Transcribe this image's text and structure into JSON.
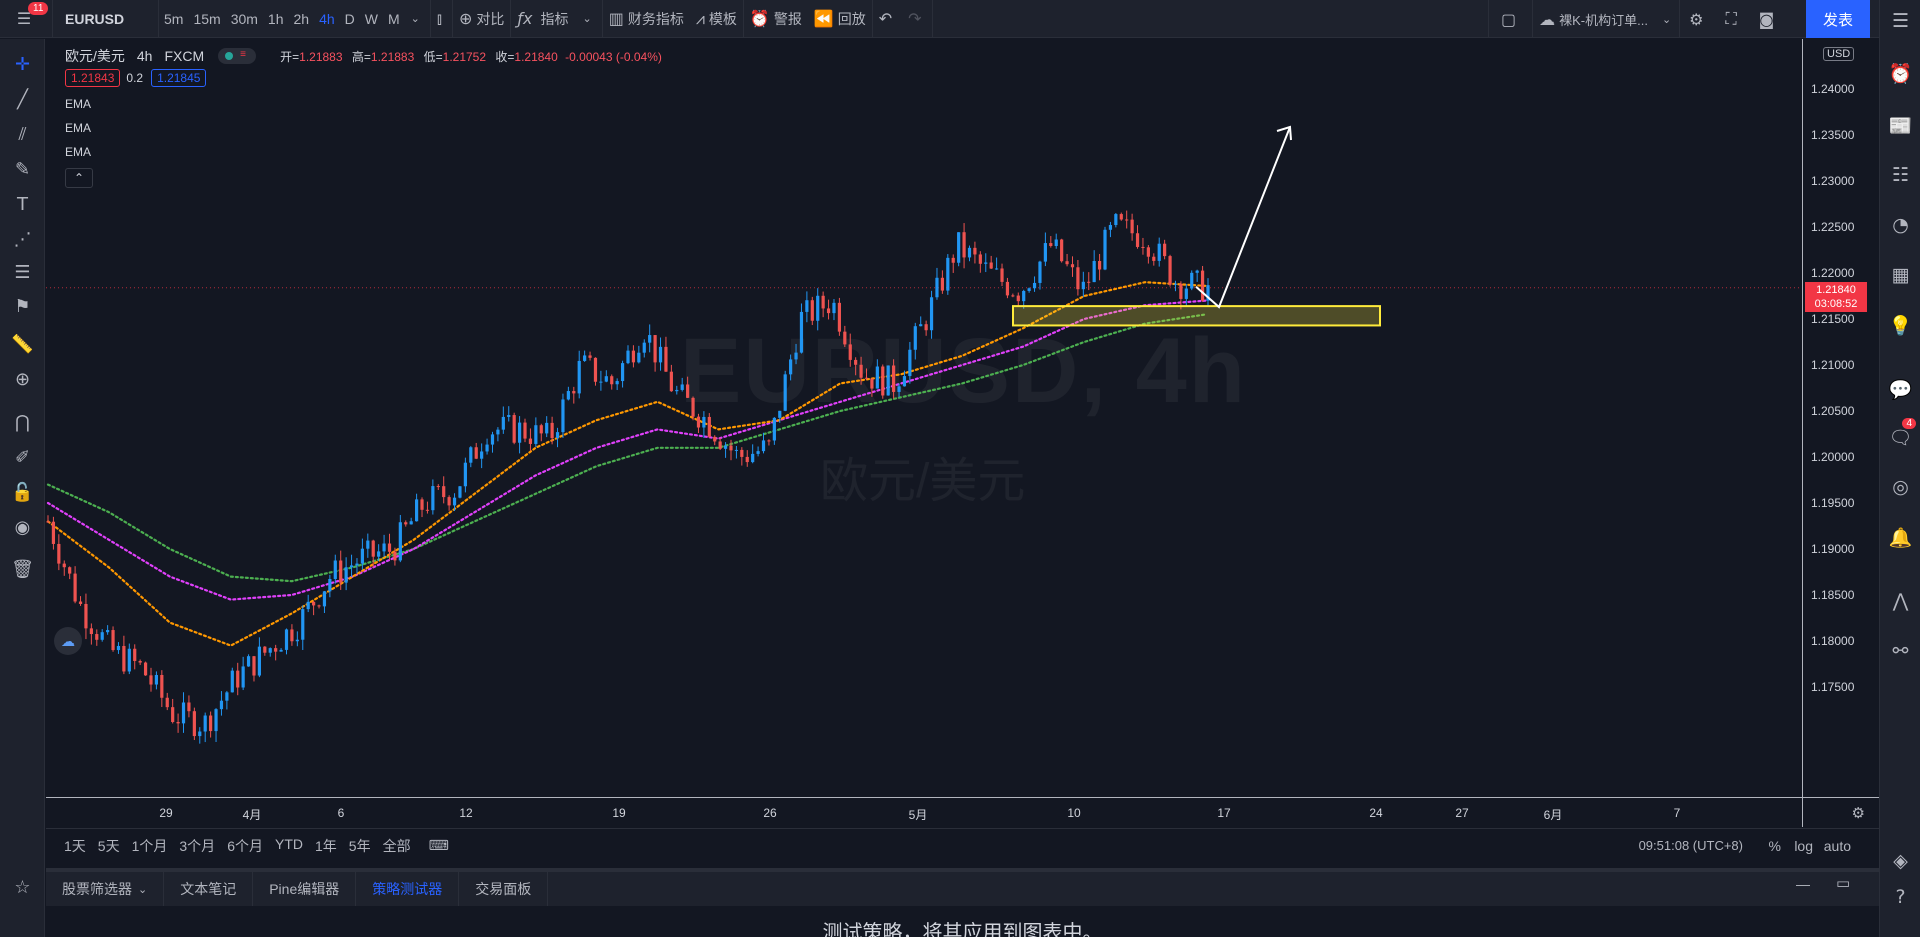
{
  "topbar": {
    "menu_badge": "11",
    "symbol": "EURUSD",
    "intervals": [
      "5m",
      "15m",
      "30m",
      "1h",
      "2h",
      "4h",
      "D",
      "W",
      "M"
    ],
    "active_interval": "4h",
    "compare": "对比",
    "indicators": "指标",
    "financials": "财务指标",
    "templates": "模板",
    "alert": "警报",
    "replay": "回放",
    "layout_name": "裸K-机构订单...",
    "publish": "发表"
  },
  "legend": {
    "title": "欧元/美元",
    "interval": "4h",
    "source": "FXCM",
    "open_label": "开=",
    "open": "1.21883",
    "high_label": "高=",
    "high": "1.21883",
    "low_label": "低=",
    "low": "1.21752",
    "close_label": "收=",
    "close": "1.21840",
    "change": "-0.00043 (-0.04%)",
    "sell": "1.21843",
    "spread": "0.2",
    "buy": "1.21845",
    "indicators": [
      "EMA",
      "EMA",
      "EMA"
    ]
  },
  "watermark": {
    "symbol": "EURUSD, 4h",
    "name": "欧元/美元"
  },
  "price_axis": {
    "currency": "USD",
    "labels": [
      "1.24000",
      "1.23500",
      "1.23000",
      "1.22500",
      "1.22000",
      "1.21500",
      "1.21000",
      "1.20500",
      "1.20000",
      "1.19500",
      "1.19000",
      "1.18500",
      "1.18000",
      "1.17500"
    ],
    "last_price": "1.21840",
    "countdown": "03:08:52"
  },
  "time_axis": {
    "labels": [
      "29",
      "4月",
      "6",
      "12",
      "19",
      "26",
      "5月",
      "10",
      "17",
      "24",
      "27",
      "6月",
      "7"
    ]
  },
  "range_bar": {
    "ranges": [
      "1天",
      "5天",
      "1个月",
      "3个月",
      "6个月",
      "YTD",
      "1年",
      "5年",
      "全部"
    ],
    "clock": "09:51:08 (UTC+8)",
    "percent": "%",
    "log": "log",
    "auto": "auto"
  },
  "bottom": {
    "tabs": [
      "股票筛选器",
      "文本笔记",
      "Pine编辑器",
      "策略测试器",
      "交易面板"
    ],
    "active_tab": "策略测试器",
    "message": "测试策略，将其应用到图表中。"
  },
  "right_sidebar": {
    "badge": "4"
  },
  "colors": {
    "up": "#2196f3",
    "down": "#ef5350",
    "ema_fast": "#ff9800",
    "ema_mid": "#e040fb",
    "ema_slow": "#4caf50",
    "zone": "#ffeb3b",
    "accent": "#2962ff"
  },
  "chart_data": {
    "type": "candlestick",
    "symbol": "EURUSD",
    "timeframe": "4h",
    "ylim": [
      1.17,
      1.245
    ],
    "x_ticks": [
      "29",
      "4月",
      "6",
      "12",
      "19",
      "26",
      "5月",
      "10",
      "17",
      "24",
      "27",
      "6月",
      "7"
    ],
    "price_path": [
      {
        "date": "3-24",
        "price": 1.193
      },
      {
        "date": "3-25",
        "price": 1.184
      },
      {
        "date": "3-26",
        "price": 1.179
      },
      {
        "date": "3-29",
        "price": 1.177
      },
      {
        "date": "3-31",
        "price": 1.172
      },
      {
        "date": "4-1",
        "price": 1.171
      },
      {
        "date": "4-2",
        "price": 1.176
      },
      {
        "date": "4-5",
        "price": 1.179
      },
      {
        "date": "4-6",
        "price": 1.182
      },
      {
        "date": "4-7",
        "price": 1.187
      },
      {
        "date": "4-9",
        "price": 1.189
      },
      {
        "date": "4-12",
        "price": 1.19
      },
      {
        "date": "4-14",
        "price": 1.195
      },
      {
        "date": "4-16",
        "price": 1.1965
      },
      {
        "date": "4-19",
        "price": 1.203
      },
      {
        "date": "4-21",
        "price": 1.203
      },
      {
        "date": "4-23",
        "price": 1.202
      },
      {
        "date": "4-26",
        "price": 1.21
      },
      {
        "date": "4-28",
        "price": 1.208
      },
      {
        "date": "4-29",
        "price": 1.214
      },
      {
        "date": "4-30",
        "price": 1.207
      },
      {
        "date": "5-3",
        "price": 1.204
      },
      {
        "date": "5-5",
        "price": 1.2
      },
      {
        "date": "5-7",
        "price": 1.201
      },
      {
        "date": "5-10",
        "price": 1.215
      },
      {
        "date": "5-11",
        "price": 1.217
      },
      {
        "date": "5-12",
        "price": 1.209
      },
      {
        "date": "5-14",
        "price": 1.208
      },
      {
        "date": "5-17",
        "price": 1.215
      },
      {
        "date": "5-18",
        "price": 1.223
      },
      {
        "date": "5-19",
        "price": 1.22
      },
      {
        "date": "5-20",
        "price": 1.218
      },
      {
        "date": "5-21",
        "price": 1.223
      },
      {
        "date": "5-24",
        "price": 1.218
      },
      {
        "date": "5-25",
        "price": 1.225
      },
      {
        "date": "5-26",
        "price": 1.224
      },
      {
        "date": "5-27",
        "price": 1.219
      },
      {
        "date": "5-27",
        "price": 1.2184
      }
    ],
    "ema_fast": [
      1.193,
      1.188,
      1.182,
      1.1795,
      1.183,
      1.187,
      1.191,
      1.196,
      1.201,
      1.204,
      1.206,
      1.203,
      1.204,
      1.208,
      1.209,
      1.211,
      1.214,
      1.2175,
      1.219,
      1.2186
    ],
    "ema_mid": [
      1.195,
      1.191,
      1.187,
      1.1845,
      1.185,
      1.187,
      1.19,
      1.194,
      1.198,
      1.201,
      1.203,
      1.202,
      1.204,
      1.206,
      1.208,
      1.21,
      1.212,
      1.215,
      1.2165,
      1.217
    ],
    "ema_slow": [
      1.197,
      1.194,
      1.19,
      1.187,
      1.1865,
      1.188,
      1.19,
      1.193,
      1.196,
      1.199,
      1.201,
      1.201,
      1.203,
      1.205,
      1.2065,
      1.208,
      1.21,
      1.2125,
      1.2145,
      1.2155
    ],
    "support_zone": [
      1.2143,
      1.2164
    ],
    "last_price": 1.2184,
    "projection_arrow": {
      "from": 1.215,
      "to": 1.235
    }
  }
}
